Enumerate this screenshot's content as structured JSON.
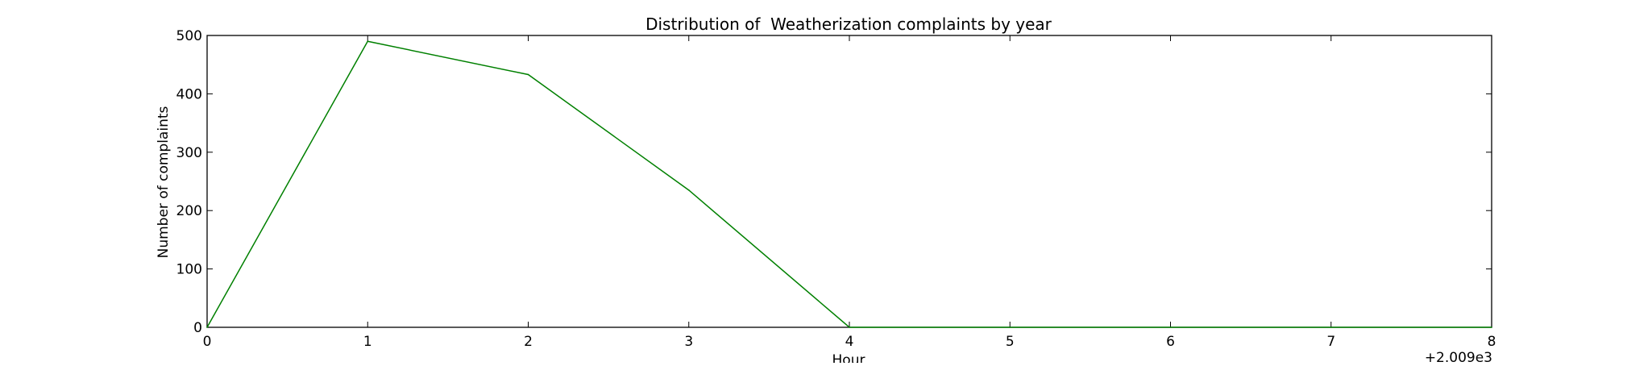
{
  "chart_data": {
    "type": "line",
    "title": "Distribution of  Weatherization complaints by year",
    "xlabel": "Hour",
    "ylabel": "Number of complaints",
    "x_offset_label": "+2.009e3",
    "xlim": [
      0,
      8
    ],
    "ylim": [
      0,
      500
    ],
    "x_ticks": [
      0,
      1,
      2,
      3,
      4,
      5,
      6,
      7,
      8
    ],
    "y_ticks": [
      0,
      100,
      200,
      300,
      400,
      500
    ],
    "grid": false,
    "legend": "none",
    "series": [
      {
        "color": "#008000",
        "x": [
          0,
          1,
          2,
          3,
          4,
          5,
          6,
          7,
          8
        ],
        "y": [
          0,
          490,
          433,
          235,
          0,
          0,
          0,
          0,
          0
        ]
      }
    ]
  }
}
